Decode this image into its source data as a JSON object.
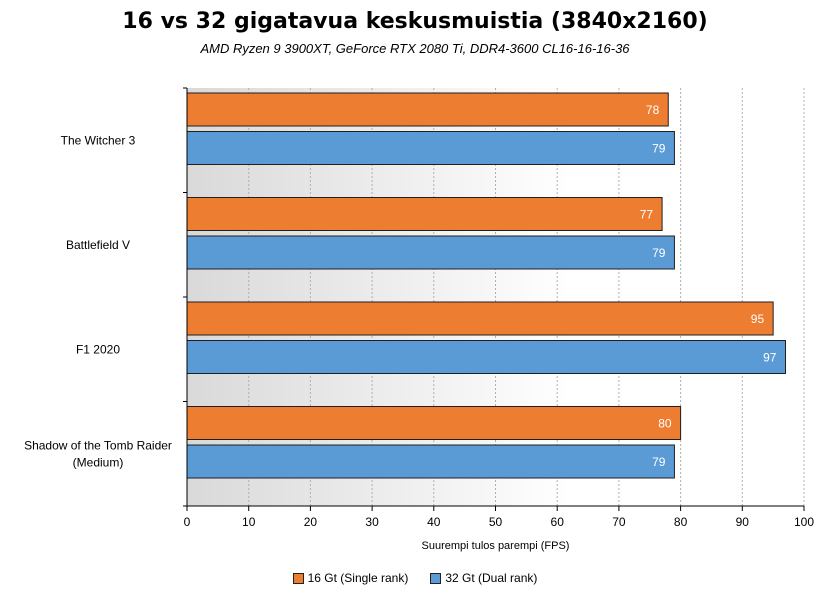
{
  "chart_data": {
    "type": "bar",
    "orientation": "horizontal",
    "title": "16 vs 32 gigatavua keskusmuistia (3840x2160)",
    "subtitle": "AMD Ryzen 9 3900XT,  GeForce RTX 2080 Ti, DDR4-3600 CL16-16-16-36",
    "xlabel": "Suurempi tulos parempi (FPS)",
    "ylabel": "",
    "xlim": [
      0,
      100
    ],
    "xticks": [
      0,
      10,
      20,
      30,
      40,
      50,
      60,
      70,
      80,
      90,
      100
    ],
    "grid": true,
    "legend_position": "bottom",
    "categories": [
      "The Witcher 3",
      "Battlefield V",
      "F1 2020",
      "Shadow of the Tomb Raider (Medium)"
    ],
    "category_lines": [
      [
        "The Witcher 3"
      ],
      [
        "Battlefield V"
      ],
      [
        "F1 2020"
      ],
      [
        "Shadow of the Tomb Raider",
        "(Medium)"
      ]
    ],
    "series": [
      {
        "name": "16 Gt (Single rank)",
        "color": "#ed7d31",
        "values": [
          78,
          77,
          95,
          80
        ]
      },
      {
        "name": "32 Gt (Dual rank)",
        "color": "#5b9bd5",
        "values": [
          79,
          79,
          97,
          79
        ]
      }
    ]
  }
}
